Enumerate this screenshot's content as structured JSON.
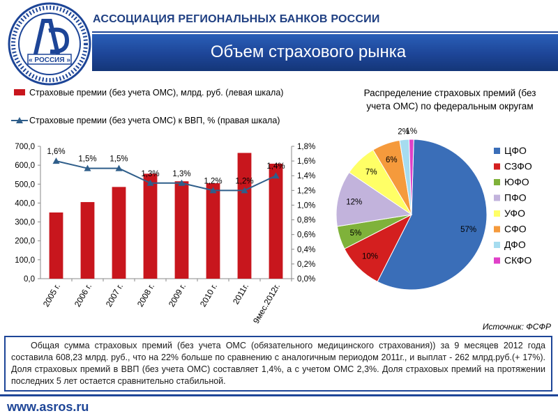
{
  "header": {
    "org_title": "АССОЦИАЦИЯ РЕГИОНАЛЬНЫХ БАНКОВ РОССИИ",
    "slide_title": "Объем страхового рынка",
    "logo_text": "« РОССИЯ »"
  },
  "legend": {
    "bar_label": "Страховые премии (без учета ОМС), млрд. руб. (левая шкала)",
    "line_label": "Страховые премии (без учета ОМС) к ВВП, % (правая шкала)"
  },
  "pie_title_line1": "Распределение страховых премий (без",
  "pie_title_line2": "учета ОМС) по федеральным округам",
  "source": "Источник: ФСФР",
  "summary": "Общая сумма страховых премий (без учета ОМС (обязательного медицинского страхования)) за 9 месяцев 2012 года составила 608,23 млрд. руб., что на 22% больше по сравнению с аналогичным периодом 2011г., и выплат - 262 млрд.руб.(+ 17%). Доля страховых премий в ВВП (без учета ОМС) составляет 1,4%, а с учетом ОМС 2,3%. Доля страховых премий на протяжении последних 5 лет остается сравнительно стабильной.",
  "footer": {
    "url": "www.asros.ru"
  },
  "colors": {
    "bar": "#c8161d",
    "line": "#2f5e8a",
    "brand": "#1d4597"
  },
  "chart_data": [
    {
      "type": "bar",
      "categories": [
        "2005 г.",
        "2006 г.",
        "2007 г.",
        "2008 г.",
        "2009 г.",
        "2010 г.",
        "2011г.",
        "9мес.2012г."
      ],
      "y_ticks": [
        "0,0",
        "100,0",
        "200,0",
        "300,0",
        "400,0",
        "500,0",
        "600,0",
        "700,0"
      ],
      "y2_ticks": [
        "0,0%",
        "0,2%",
        "0,4%",
        "0,6%",
        "0,8%",
        "1,0%",
        "1,2%",
        "1,4%",
        "1,6%",
        "1,8%"
      ],
      "ylim": [
        0,
        700
      ],
      "y2lim": [
        0,
        1.8
      ],
      "series": [
        {
          "name": "Страховые премии (без учета ОМС), млрд. руб. (левая шкала)",
          "kind": "bar",
          "values": [
            350,
            405,
            485,
            555,
            515,
            505,
            665,
            608
          ]
        },
        {
          "name": "Страховые премии (без учета ОМС) к ВВП, % (правая шкала)",
          "kind": "line",
          "values": [
            1.6,
            1.5,
            1.5,
            1.3,
            1.3,
            1.2,
            1.2,
            1.4
          ],
          "labels": [
            "1,6%",
            "1,5%",
            "1,5%",
            "1,3%",
            "1,3%",
            "1,2%",
            "1,2%",
            "1,4%"
          ]
        }
      ],
      "grid": false
    },
    {
      "type": "pie",
      "title": "Распределение страховых премий (без учета ОМС) по федеральным округам",
      "slices": [
        {
          "name": "ЦФО",
          "value": 57,
          "label": "57%",
          "color": "#3a6eb8"
        },
        {
          "name": "СЗФО",
          "value": 10,
          "label": "10%",
          "color": "#d41f1f"
        },
        {
          "name": "ЮФО",
          "value": 5,
          "label": "5%",
          "color": "#7fb23a"
        },
        {
          "name": "ПФО",
          "value": 12,
          "label": "12%",
          "color": "#c2b3dc"
        },
        {
          "name": "УФО",
          "value": 7,
          "label": "7%",
          "color": "#ffff66"
        },
        {
          "name": "СФО",
          "value": 6,
          "label": "6%",
          "color": "#f59a3c"
        },
        {
          "name": "ДФО",
          "value": 2,
          "label": "2%",
          "color": "#a6dcef"
        },
        {
          "name": "СКФО",
          "value": 1,
          "label": "1%",
          "color": "#e040c8"
        }
      ],
      "legend": "right"
    }
  ]
}
